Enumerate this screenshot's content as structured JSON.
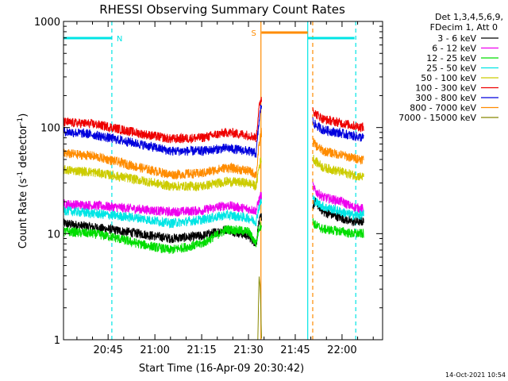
{
  "chart_data": {
    "type": "line",
    "title": "RHESSI Observing Summary Count Rates",
    "xlabel": "Start Time (16-Apr-09 20:30:42)",
    "ylabel_main": "Count Rate (s",
    "ylabel_sup1": "-1",
    "ylabel_mid": " detector",
    "ylabel_sup2": "-1",
    "ylabel_end": ")",
    "yscale": "log",
    "ylim": [
      1,
      1000
    ],
    "xlim_minutes_of_day": [
      1230.7,
      1333
    ],
    "x_ticks": [
      {
        "label": "20:45",
        "minute": 1245
      },
      {
        "label": "21:00",
        "minute": 1260
      },
      {
        "label": "21:15",
        "minute": 1275
      },
      {
        "label": "21:30",
        "minute": 1290
      },
      {
        "label": "21:45",
        "minute": 1305
      },
      {
        "label": "22:00",
        "minute": 1320
      }
    ],
    "y_ticks": [
      {
        "label": "1",
        "value": 1
      },
      {
        "label": "10",
        "value": 10
      },
      {
        "label": "100",
        "value": 100
      },
      {
        "label": "1000",
        "value": 1000
      }
    ],
    "legend_header_1": "Det 1,3,4,5,6,9,",
    "legend_header_2": "FDecim 1, Att 0",
    "legend_placement": "right",
    "series": [
      {
        "name": "3 - 6 keV",
        "color": "#000000",
        "x": [
          1230.7,
          1240,
          1245,
          1255,
          1265,
          1275,
          1283,
          1290,
          1292.5,
          1293.2,
          1294,
          1310.6,
          1311.5,
          1314,
          1320,
          1323,
          1327
        ],
        "y": [
          12.5,
          11.5,
          11,
          10,
          9,
          9.5,
          11,
          9.5,
          8,
          12,
          14.5,
          18,
          20,
          16,
          14,
          13,
          13
        ]
      },
      {
        "name": "6 - 12 keV",
        "color": "#ee00ee",
        "x": [
          1230.7,
          1240,
          1245,
          1255,
          1265,
          1275,
          1283,
          1290,
          1292.5,
          1293.2,
          1294,
          1310.6,
          1311.5,
          1314,
          1320,
          1323,
          1327
        ],
        "y": [
          19,
          18.5,
          18,
          17,
          16,
          16.5,
          18.5,
          17,
          16.5,
          20,
          23,
          28,
          25,
          22,
          20,
          18,
          17
        ]
      },
      {
        "name": "12 - 25 keV",
        "color": "#00dd00",
        "x": [
          1230.7,
          1240,
          1245,
          1255,
          1265,
          1275,
          1283,
          1290,
          1292.5,
          1293.2,
          1294,
          1310.6,
          1311.5,
          1314,
          1320,
          1323,
          1327
        ],
        "y": [
          10.5,
          10,
          9.5,
          8,
          7,
          8,
          11,
          10.5,
          8,
          11,
          12,
          13,
          12,
          11,
          10.5,
          10,
          10
        ]
      },
      {
        "name": "25 - 50 keV",
        "color": "#00e5e5",
        "x": [
          1230.7,
          1240,
          1245,
          1255,
          1265,
          1275,
          1283,
          1290,
          1292.5,
          1293.2,
          1294,
          1310.6,
          1311.5,
          1314,
          1320,
          1323,
          1327
        ],
        "y": [
          16.5,
          15.5,
          15,
          14,
          12.5,
          13.5,
          15,
          14,
          13,
          17,
          20,
          22,
          20,
          18,
          16,
          15,
          15
        ]
      },
      {
        "name": "50 - 100 keV",
        "color": "#cccc00",
        "x": [
          1230.7,
          1240,
          1245,
          1255,
          1265,
          1275,
          1283,
          1290,
          1292.5,
          1293.2,
          1294,
          1310.6,
          1311.5,
          1314,
          1320,
          1323,
          1327
        ],
        "y": [
          40,
          38,
          36,
          32,
          28,
          28,
          31,
          30,
          28,
          40,
          50,
          52,
          48,
          42,
          38,
          36,
          34
        ]
      },
      {
        "name": "100 - 300 keV",
        "color": "#ee0000",
        "x": [
          1230.7,
          1240,
          1245,
          1255,
          1265,
          1275,
          1283,
          1290,
          1292.5,
          1293.2,
          1294,
          1310.6,
          1311.5,
          1314,
          1320,
          1323,
          1327
        ],
        "y": [
          112,
          108,
          102,
          88,
          78,
          80,
          90,
          85,
          80,
          140,
          190,
          150,
          135,
          120,
          110,
          105,
          100
        ]
      },
      {
        "name": "300 - 800 keV",
        "color": "#0000dd",
        "x": [
          1230.7,
          1240,
          1245,
          1255,
          1265,
          1275,
          1283,
          1290,
          1292.5,
          1293.2,
          1294,
          1310.6,
          1311.5,
          1314,
          1320,
          1323,
          1327
        ],
        "y": [
          92,
          86,
          80,
          70,
          60,
          60,
          64,
          60,
          57,
          100,
          160,
          115,
          105,
          95,
          88,
          84,
          80
        ]
      },
      {
        "name": "800 - 7000 keV",
        "color": "#ff8c00",
        "x": [
          1230.7,
          1240,
          1245,
          1255,
          1265,
          1275,
          1283,
          1290,
          1292.5,
          1293.2,
          1294,
          1310.6,
          1311.5,
          1314,
          1320,
          1323,
          1327
        ],
        "y": [
          57,
          54,
          50,
          42,
          36,
          37,
          42,
          39,
          36,
          60,
          90,
          75,
          68,
          60,
          55,
          52,
          50
        ]
      },
      {
        "name": "7000 - 15000 keV",
        "color": "#888800",
        "x": [
          1293,
          1293.4,
          1293.8,
          1294.2
        ],
        "y": [
          1,
          4,
          3,
          1
        ]
      }
    ],
    "attenuator_flags": [
      {
        "label": "N",
        "color": "#00e5e5",
        "segments": [
          [
            1230.7,
            1246.2
          ],
          [
            1309,
            1324
          ]
        ]
      },
      {
        "label": "S",
        "color": "#ff8c00",
        "segments": [
          [
            1294.2,
            1309
          ]
        ]
      }
    ],
    "vertical_markers": [
      {
        "minute": 1246.2,
        "color": "#00e5e5",
        "style": "dashed"
      },
      {
        "minute": 1294,
        "color": "#ff8c00",
        "style": "solid"
      },
      {
        "minute": 1309,
        "color": "#00e5e5",
        "style": "solid"
      },
      {
        "minute": 1310.6,
        "color": "#ff8c00",
        "style": "dashed"
      },
      {
        "minute": 1324.4,
        "color": "#00e5e5",
        "style": "dashed"
      }
    ]
  },
  "footer_timestamp": "14-Oct-2021 10:54"
}
